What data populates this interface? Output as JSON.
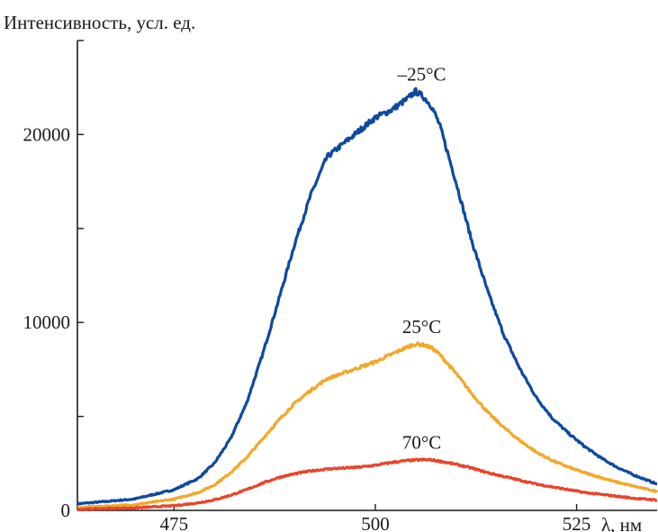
{
  "chart_data": {
    "type": "line",
    "ylabel": "Интенсивность, усл. ед.",
    "xlabel": "λ, нм",
    "xlim": [
      463,
      535
    ],
    "ylim": [
      0,
      25000
    ],
    "x_ticks": [
      475,
      500,
      525
    ],
    "y_ticks": [
      0,
      10000,
      20000
    ],
    "y_minor_ticks": [
      5000,
      15000,
      25000
    ],
    "legend": "none",
    "grid": false,
    "series": [
      {
        "name": "–25°C",
        "color": "#0d4a9e",
        "x": [
          463,
          465,
          470,
          475,
          478,
          480,
          482,
          484,
          486,
          488,
          490,
          492,
          494,
          496,
          498,
          500,
          502,
          504,
          505,
          506,
          507,
          508,
          510,
          512,
          514,
          516,
          518,
          520,
          522,
          524,
          526,
          528,
          530,
          532,
          535
        ],
        "y": [
          350,
          420,
          600,
          1100,
          1700,
          2500,
          3800,
          5700,
          8300,
          11200,
          14200,
          16800,
          18800,
          19500,
          20200,
          20900,
          21300,
          21900,
          22300,
          22000,
          21500,
          20500,
          17500,
          14300,
          11600,
          9300,
          7500,
          6000,
          4900,
          4100,
          3400,
          2800,
          2300,
          1900,
          1400
        ]
      },
      {
        "name": "25°C",
        "color": "#f2a82a",
        "x": [
          463,
          465,
          470,
          475,
          478,
          480,
          482,
          484,
          486,
          488,
          490,
          492,
          494,
          496,
          498,
          500,
          502,
          504,
          505,
          506,
          507,
          508,
          510,
          512,
          514,
          516,
          518,
          520,
          522,
          524,
          526,
          528,
          530,
          532,
          535
        ],
        "y": [
          150,
          190,
          300,
          600,
          950,
          1350,
          2000,
          2800,
          3800,
          4800,
          5700,
          6400,
          7000,
          7300,
          7600,
          7900,
          8300,
          8700,
          8850,
          8800,
          8650,
          8300,
          7300,
          6200,
          5200,
          4400,
          3700,
          3100,
          2650,
          2300,
          2000,
          1750,
          1500,
          1300,
          1000
        ]
      },
      {
        "name": "70°C",
        "color": "#e8452c",
        "x": [
          463,
          465,
          470,
          475,
          478,
          480,
          482,
          484,
          486,
          488,
          490,
          492,
          494,
          496,
          498,
          500,
          502,
          504,
          505,
          506,
          507,
          508,
          510,
          512,
          514,
          516,
          518,
          520,
          522,
          524,
          526,
          528,
          530,
          532,
          535
        ],
        "y": [
          60,
          80,
          130,
          250,
          400,
          560,
          800,
          1100,
          1450,
          1750,
          1950,
          2100,
          2200,
          2250,
          2300,
          2400,
          2550,
          2650,
          2680,
          2700,
          2680,
          2620,
          2450,
          2250,
          2000,
          1800,
          1600,
          1400,
          1250,
          1100,
          950,
          850,
          750,
          650,
          550
        ]
      }
    ],
    "annotations": [
      {
        "text": "–25°C",
        "x": 506,
        "y": 22300
      },
      {
        "text": "25°C",
        "x": 506,
        "y": 8850
      },
      {
        "text": "70°C",
        "x": 506,
        "y": 2700
      }
    ]
  }
}
